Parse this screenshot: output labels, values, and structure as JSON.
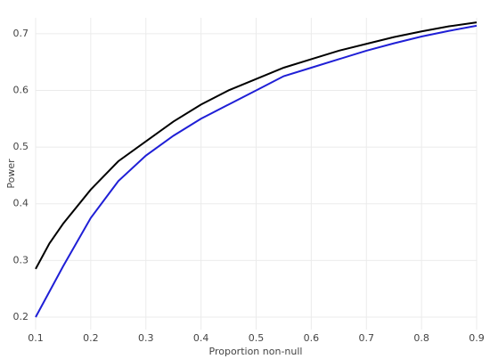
{
  "chart_data": {
    "type": "line",
    "x_label": "Proportion non-null",
    "y_label": "Power",
    "x": [
      0.1,
      0.125,
      0.15,
      0.2,
      0.25,
      0.3,
      0.35,
      0.4,
      0.45,
      0.5,
      0.55,
      0.6,
      0.65,
      0.7,
      0.75,
      0.8,
      0.85,
      0.9
    ],
    "series": [
      {
        "color": "#000000",
        "values": [
          0.285,
          0.33,
          0.365,
          0.425,
          0.475,
          0.51,
          0.545,
          0.575,
          0.6,
          0.62,
          0.64,
          0.655,
          0.67,
          0.682,
          0.694,
          0.704,
          0.713,
          0.72
        ]
      },
      {
        "color": "#1f1fd6",
        "values": [
          0.2,
          0.245,
          0.29,
          0.375,
          0.44,
          0.485,
          0.52,
          0.55,
          0.575,
          0.6,
          0.625,
          0.64,
          0.655,
          0.67,
          0.683,
          0.695,
          0.705,
          0.714
        ]
      }
    ],
    "xlim": [
      0.1,
      0.9
    ],
    "ylim": [
      0.178,
      0.728
    ],
    "xticks": [
      0.1,
      0.2,
      0.3,
      0.4,
      0.5,
      0.6,
      0.7,
      0.8,
      0.9
    ],
    "yticks": [
      0.2,
      0.3,
      0.4,
      0.5,
      0.6,
      0.7
    ],
    "grid": true
  }
}
